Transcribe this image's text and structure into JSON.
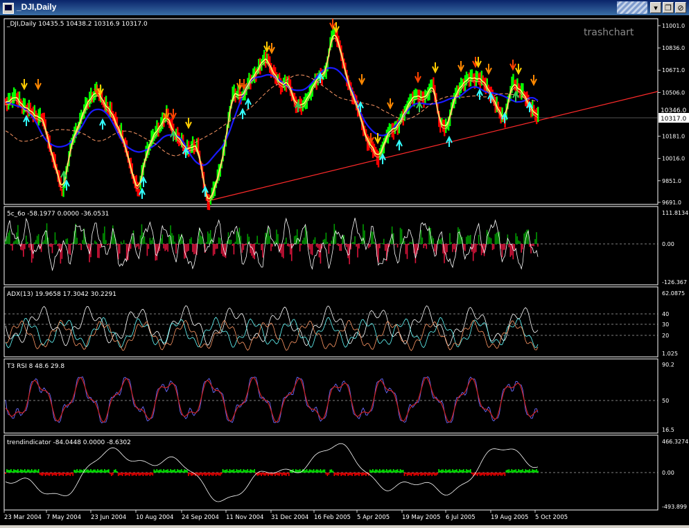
{
  "window": {
    "title": "_DJI,Daily",
    "buttons": [
      "▾",
      "❐",
      "⊘"
    ]
  },
  "watermark": "trashchart",
  "main": {
    "info": "_DJI,Daily  10435.5 10438.2 10316.9 10317.0",
    "yticks": [
      11001.0,
      10836.0,
      10671.0,
      10506.0,
      10181.0,
      10016.0,
      9851.0,
      9691.0
    ],
    "ylim": [
      9691.0,
      11001.0
    ],
    "price_label": "10317.0",
    "price_partial": "10346.0"
  },
  "panes": [
    {
      "info": "5c_6o -58.1977 0.0000 -36.0531",
      "labels": [
        "111.8134",
        "0.00",
        "-126.367"
      ]
    },
    {
      "info": "ADX(13) 19.9658 17.3042 30.2291",
      "labels": [
        "62.0875",
        "40",
        "30",
        "20",
        "1.025"
      ]
    },
    {
      "info": "T3 RSI 8 48.6 29.8",
      "labels": [
        "90.2",
        "50",
        "16.5"
      ]
    },
    {
      "info": "trendindicator -84.0448 0.0000 -8.6302",
      "labels": [
        "466.3274",
        "0.00",
        "-493.899"
      ]
    }
  ],
  "xaxis": [
    "23 Mar 2004",
    "7 May 2004",
    "23 Jun 2004",
    "10 Aug 2004",
    "24 Sep 2004",
    "11 Nov 2004",
    "31 Dec 2004",
    "16 Feb 2005",
    "5 Apr 2005",
    "19 May 2005",
    "6 Jul 2005",
    "19 Aug 2005",
    "5 Oct 2005"
  ],
  "colors": {
    "bull": "#00ff00",
    "bear": "#ff0000",
    "ma_fast": "#ffff66",
    "ma_mid": "#ff9966",
    "ma_blue": "#1a1aff",
    "trend": "#ff2a2a",
    "cyan": "#33ffff",
    "green_bar": "#009900",
    "red_bar": "#dc143c"
  }
}
